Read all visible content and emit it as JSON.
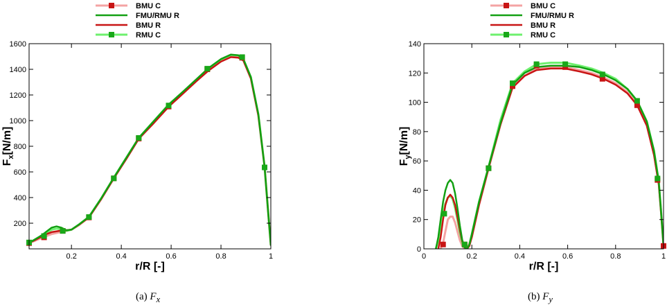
{
  "chart_data": [
    {
      "type": "line",
      "caption_label": "(a)",
      "caption_symbol": "F",
      "caption_sub": "x",
      "xlabel": "r/R [-]",
      "ylabel_main": "F",
      "ylabel_sub": "x",
      "ylabel_unit": "[N/m]",
      "xlim": [
        0.03,
        1.0
      ],
      "ylim": [
        0,
        1600
      ],
      "xticks": [
        0.2,
        0.4,
        0.6,
        0.8,
        1
      ],
      "xtick_labels": [
        "0.2",
        "0.4",
        "0.6",
        "0.8",
        "1"
      ],
      "yticks": [
        200,
        400,
        600,
        800,
        1000,
        1200,
        1400,
        1600
      ],
      "ytick_labels": [
        "200",
        "400",
        "600",
        "800",
        "1000",
        "1200",
        "1400",
        "1600"
      ],
      "legend_position": "top-center",
      "series": [
        {
          "name": "BMU C",
          "color": "#f4a3a3",
          "marker_color": "#c81414",
          "width": 3,
          "marker": true,
          "x": [
            0.03,
            0.05,
            0.08,
            0.1,
            0.12,
            0.15,
            0.17,
            0.2,
            0.23,
            0.27,
            0.32,
            0.37,
            0.42,
            0.47,
            0.53,
            0.59,
            0.65,
            0.7,
            0.75,
            0.8,
            0.84,
            0.87,
            0.89,
            0.92,
            0.95,
            0.975,
            0.99,
            1.0
          ],
          "y": [
            45,
            60,
            85,
            100,
            115,
            128,
            135,
            150,
            185,
            245,
            390,
            550,
            705,
            860,
            985,
            1115,
            1220,
            1310,
            1395,
            1465,
            1500,
            1495,
            1470,
            1330,
            1040,
            640,
            270,
            30
          ],
          "markers_x": [
            0.03,
            0.09,
            0.165,
            0.27,
            0.37,
            0.47,
            0.59,
            0.745,
            0.885,
            0.975
          ],
          "markers_y": [
            45,
            90,
            140,
            245,
            550,
            860,
            1110,
            1400,
            1490,
            635
          ]
        },
        {
          "name": "FMU/RMU R",
          "color": "#12a012",
          "width": 2.5,
          "marker": false,
          "x": [
            0.03,
            0.05,
            0.08,
            0.1,
            0.12,
            0.14,
            0.16,
            0.18,
            0.2,
            0.23,
            0.27,
            0.32,
            0.37,
            0.42,
            0.47,
            0.53,
            0.59,
            0.65,
            0.7,
            0.75,
            0.8,
            0.84,
            0.87,
            0.89,
            0.92,
            0.95,
            0.975,
            0.99,
            1.0
          ],
          "y": [
            48,
            70,
            105,
            135,
            165,
            175,
            165,
            145,
            150,
            190,
            250,
            395,
            555,
            710,
            865,
            995,
            1125,
            1230,
            1320,
            1410,
            1480,
            1515,
            1510,
            1480,
            1340,
            1050,
            640,
            270,
            30
          ]
        },
        {
          "name": "BMU R",
          "color": "#c81414",
          "width": 2.5,
          "marker": false,
          "x": [
            0.03,
            0.05,
            0.08,
            0.1,
            0.12,
            0.15,
            0.17,
            0.2,
            0.23,
            0.27,
            0.32,
            0.37,
            0.42,
            0.47,
            0.53,
            0.59,
            0.65,
            0.7,
            0.75,
            0.8,
            0.84,
            0.87,
            0.89,
            0.92,
            0.95,
            0.975,
            0.99,
            1.0
          ],
          "y": [
            47,
            65,
            95,
            115,
            130,
            140,
            143,
            150,
            188,
            245,
            390,
            550,
            700,
            858,
            980,
            1108,
            1215,
            1305,
            1390,
            1460,
            1495,
            1490,
            1468,
            1328,
            1040,
            640,
            270,
            30
          ]
        },
        {
          "name": "RMU C",
          "color": "#6ef06e",
          "marker_color": "#19a819",
          "width": 3,
          "marker": true,
          "x": [
            0.03,
            0.05,
            0.08,
            0.1,
            0.12,
            0.14,
            0.16,
            0.18,
            0.2,
            0.23,
            0.27,
            0.32,
            0.37,
            0.42,
            0.47,
            0.53,
            0.59,
            0.65,
            0.7,
            0.75,
            0.8,
            0.84,
            0.87,
            0.89,
            0.92,
            0.95,
            0.975,
            0.99,
            1.0
          ],
          "y": [
            48,
            68,
            100,
            125,
            150,
            158,
            152,
            140,
            150,
            190,
            250,
            395,
            555,
            710,
            865,
            995,
            1125,
            1228,
            1318,
            1408,
            1478,
            1512,
            1508,
            1478,
            1338,
            1048,
            640,
            270,
            30
          ],
          "markers_x": [
            0.03,
            0.09,
            0.165,
            0.27,
            0.37,
            0.47,
            0.59,
            0.745,
            0.885,
            0.975
          ],
          "markers_y": [
            50,
            100,
            140,
            248,
            550,
            865,
            1118,
            1405,
            1495,
            635
          ]
        }
      ]
    },
    {
      "type": "line",
      "caption_label": "(b)",
      "caption_symbol": "F",
      "caption_sub": "y",
      "xlabel": "r/R [-]",
      "ylabel_main": "F",
      "ylabel_sub": "y",
      "ylabel_unit": "[N/m]",
      "xlim": [
        0,
        1.0
      ],
      "ylim": [
        0,
        140
      ],
      "xticks": [
        0,
        0.2,
        0.4,
        0.6,
        0.8,
        1
      ],
      "xtick_labels": [
        "0",
        "0.2",
        "0.4",
        "0.6",
        "0.8",
        "1"
      ],
      "yticks": [
        0,
        20,
        40,
        60,
        80,
        100,
        120,
        140
      ],
      "ytick_labels": [
        "0",
        "20",
        "40",
        "60",
        "80",
        "100",
        "120",
        "140"
      ],
      "legend_position": "top-center",
      "series": [
        {
          "name": "BMU C",
          "color": "#f4a3a3",
          "marker_color": "#c81414",
          "width": 3,
          "marker": true,
          "x": [
            0.07,
            0.08,
            0.09,
            0.1,
            0.11,
            0.12,
            0.13,
            0.14,
            0.15,
            0.16,
            0.17,
            0.18,
            0.2,
            0.23,
            0.27,
            0.32,
            0.37,
            0.42,
            0.47,
            0.53,
            0.59,
            0.65,
            0.7,
            0.75,
            0.8,
            0.85,
            0.89,
            0.93,
            0.96,
            0.98,
            0.99,
            1.0
          ],
          "y": [
            0,
            4,
            12,
            20,
            22,
            22,
            18,
            12,
            6,
            2,
            0,
            0,
            8,
            30,
            55,
            85,
            110,
            118,
            123,
            124,
            124,
            122,
            120,
            117,
            113,
            107,
            99,
            85,
            65,
            45,
            25,
            2
          ],
          "markers_x": [
            0.08,
            0.17,
            0.27,
            0.37,
            0.47,
            0.59,
            0.745,
            0.89,
            0.975,
            1.0
          ],
          "markers_y": [
            3,
            3,
            55,
            111,
            125,
            124,
            116,
            98,
            47,
            2
          ]
        },
        {
          "name": "FMU/RMU R",
          "color": "#12a012",
          "width": 2.5,
          "marker": false,
          "x": [
            0.05,
            0.06,
            0.07,
            0.08,
            0.09,
            0.1,
            0.11,
            0.12,
            0.13,
            0.14,
            0.15,
            0.16,
            0.17,
            0.18,
            0.19,
            0.2,
            0.23,
            0.27,
            0.32,
            0.37,
            0.42,
            0.47,
            0.53,
            0.59,
            0.65,
            0.7,
            0.75,
            0.8,
            0.85,
            0.89,
            0.93,
            0.96,
            0.98,
            0.99,
            1.0
          ],
          "y": [
            0,
            8,
            20,
            32,
            40,
            45,
            47,
            45,
            38,
            28,
            16,
            6,
            1,
            0,
            3,
            10,
            32,
            56,
            86,
            112,
            120,
            124,
            125,
            125,
            124,
            122,
            119,
            115,
            109,
            101,
            87,
            67,
            46,
            25,
            2
          ]
        },
        {
          "name": "BMU R",
          "color": "#c81414",
          "width": 2.5,
          "marker": false,
          "x": [
            0.06,
            0.07,
            0.08,
            0.09,
            0.1,
            0.11,
            0.12,
            0.13,
            0.14,
            0.15,
            0.16,
            0.17,
            0.18,
            0.19,
            0.2,
            0.23,
            0.27,
            0.32,
            0.37,
            0.42,
            0.47,
            0.53,
            0.59,
            0.65,
            0.7,
            0.75,
            0.8,
            0.85,
            0.89,
            0.93,
            0.96,
            0.98,
            0.99,
            1.0
          ],
          "y": [
            0,
            8,
            20,
            30,
            35,
            37,
            35,
            30,
            22,
            13,
            5,
            1,
            0,
            2,
            8,
            30,
            55,
            85,
            110,
            118,
            122,
            123,
            123,
            121,
            119,
            116,
            112,
            106,
            98,
            84,
            64,
            44,
            24,
            2
          ]
        },
        {
          "name": "RMU C",
          "color": "#6ef06e",
          "marker_color": "#19a819",
          "width": 3,
          "marker": true,
          "x": [
            0.05,
            0.06,
            0.07,
            0.08,
            0.09,
            0.1,
            0.11,
            0.12,
            0.13,
            0.14,
            0.15,
            0.16,
            0.17,
            0.18,
            0.19,
            0.2,
            0.23,
            0.27,
            0.32,
            0.37,
            0.42,
            0.47,
            0.53,
            0.59,
            0.65,
            0.7,
            0.75,
            0.8,
            0.85,
            0.89,
            0.93,
            0.96,
            0.98,
            0.99,
            1.0
          ],
          "y": [
            0,
            6,
            15,
            24,
            31,
            35,
            36,
            34,
            28,
            20,
            11,
            4,
            1,
            0,
            3,
            10,
            32,
            56,
            88,
            113,
            121,
            126,
            127,
            127,
            125,
            123,
            120,
            116,
            109,
            101,
            87,
            67,
            46,
            25,
            2
          ],
          "markers_x": [
            0.085,
            0.17,
            0.27,
            0.37,
            0.47,
            0.59,
            0.745,
            0.89,
            0.975
          ],
          "markers_y": [
            24,
            3,
            55,
            113,
            126,
            126,
            119,
            101,
            48
          ]
        }
      ]
    }
  ]
}
